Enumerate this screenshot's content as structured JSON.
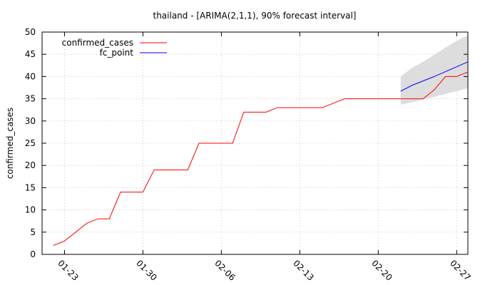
{
  "chart_data": {
    "type": "line",
    "title": "thailand -  [ARIMA(2,1,1), 90% forecast interval]",
    "xlabel": "",
    "ylabel": "confirmed_cases",
    "xlim": [
      "2020-01-21",
      "2020-02-28"
    ],
    "ylim": [
      0,
      50
    ],
    "y_ticks": [
      0,
      5,
      10,
      15,
      20,
      25,
      30,
      35,
      40,
      45,
      50
    ],
    "x_ticks": [
      {
        "date": "2020-01-23",
        "label": "01-23"
      },
      {
        "date": "2020-01-30",
        "label": "01-30"
      },
      {
        "date": "2020-02-06",
        "label": "02-06"
      },
      {
        "date": "2020-02-13",
        "label": "02-13"
      },
      {
        "date": "2020-02-20",
        "label": "02-20"
      },
      {
        "date": "2020-02-27",
        "label": "02-27"
      }
    ],
    "grid": true,
    "legend_position": "top-left",
    "series": [
      {
        "name": "confirmed_cases",
        "color": "#ff0000",
        "points": [
          [
            "2020-01-22",
            2
          ],
          [
            "2020-01-23",
            3
          ],
          [
            "2020-01-24",
            5
          ],
          [
            "2020-01-25",
            7
          ],
          [
            "2020-01-26",
            8
          ],
          [
            "2020-01-27",
            8
          ],
          [
            "2020-01-28",
            14
          ],
          [
            "2020-01-29",
            14
          ],
          [
            "2020-01-30",
            14
          ],
          [
            "2020-01-31",
            19
          ],
          [
            "2020-02-01",
            19
          ],
          [
            "2020-02-02",
            19
          ],
          [
            "2020-02-03",
            19
          ],
          [
            "2020-02-04",
            25
          ],
          [
            "2020-02-05",
            25
          ],
          [
            "2020-02-06",
            25
          ],
          [
            "2020-02-07",
            25
          ],
          [
            "2020-02-08",
            32
          ],
          [
            "2020-02-09",
            32
          ],
          [
            "2020-02-10",
            32
          ],
          [
            "2020-02-11",
            33
          ],
          [
            "2020-02-12",
            33
          ],
          [
            "2020-02-13",
            33
          ],
          [
            "2020-02-14",
            33
          ],
          [
            "2020-02-15",
            33
          ],
          [
            "2020-02-16",
            34
          ],
          [
            "2020-02-17",
            35
          ],
          [
            "2020-02-18",
            35
          ],
          [
            "2020-02-19",
            35
          ],
          [
            "2020-02-20",
            35
          ],
          [
            "2020-02-21",
            35
          ],
          [
            "2020-02-22",
            35
          ],
          [
            "2020-02-23",
            35
          ],
          [
            "2020-02-24",
            35
          ],
          [
            "2020-02-25",
            37
          ],
          [
            "2020-02-26",
            40
          ],
          [
            "2020-02-27",
            40
          ],
          [
            "2020-02-28",
            41
          ]
        ]
      },
      {
        "name": "fc_point",
        "color": "#0000ff",
        "points": [
          [
            "2020-02-22",
            36.7
          ],
          [
            "2020-02-23",
            38.0
          ],
          [
            "2020-02-24",
            39.0
          ],
          [
            "2020-02-25",
            40.0
          ],
          [
            "2020-02-26",
            41.1
          ],
          [
            "2020-02-27",
            42.2
          ],
          [
            "2020-02-28",
            43.3
          ]
        ]
      }
    ],
    "forecast_interval": {
      "color": "#dddddd",
      "points": [
        [
          "2020-02-22",
          33.7,
          40.0
        ],
        [
          "2020-02-23",
          34.2,
          41.9
        ],
        [
          "2020-02-24",
          34.8,
          43.3
        ],
        [
          "2020-02-25",
          35.4,
          44.9
        ],
        [
          "2020-02-26",
          36.1,
          46.5
        ],
        [
          "2020-02-27",
          36.7,
          48.0
        ],
        [
          "2020-02-28",
          37.4,
          49.3
        ]
      ]
    }
  }
}
